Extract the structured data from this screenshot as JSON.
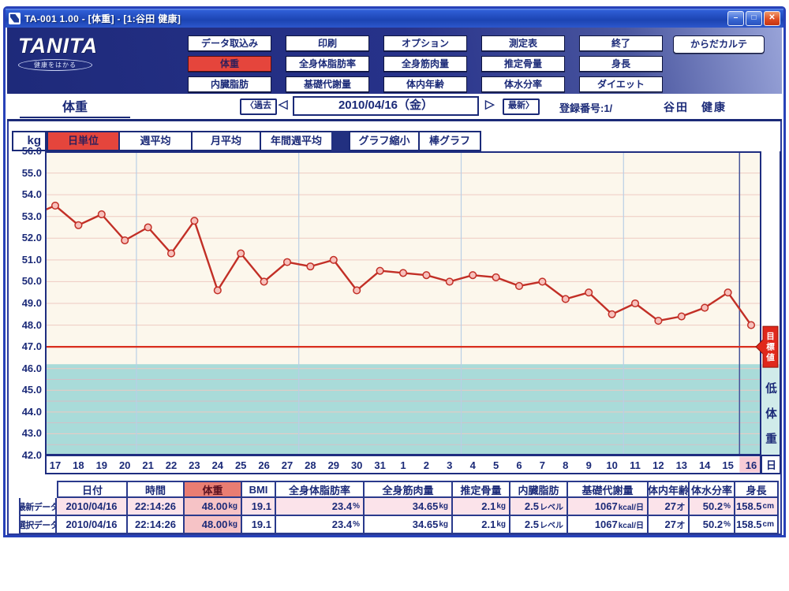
{
  "window": {
    "title": "TA-001 1.00 - [体重] - [1:谷田 健康]",
    "minimize_glyph": "–",
    "maximize_glyph": "□",
    "close_glyph": "✕"
  },
  "toolbar": {
    "brand": "TANITA",
    "tagline": "健康をはかる",
    "rows": [
      [
        "データ取込み",
        "印刷",
        "オプション",
        "測定表",
        "終了"
      ],
      [
        "体重",
        "全身体脂肪率",
        "全身筋肉量",
        "推定骨量",
        "身長"
      ],
      [
        "内臓脂肪",
        "基礎代謝量",
        "体内年齢",
        "体水分率",
        "ダイエット"
      ]
    ],
    "active_button": "体重",
    "karte_button": "からだカルテ"
  },
  "navbar": {
    "section": "体重",
    "past": "〈過去",
    "prev_glyph": "◁",
    "date": "2010/04/16（金）",
    "next_glyph": "▷",
    "latest": "最新〉",
    "registration": "登録番号:1/",
    "user": "谷田　健康"
  },
  "tabs": {
    "unit": "kg",
    "day": "日単位",
    "week": "週平均",
    "month": "月平均",
    "yearweek": "年間週平均",
    "active": "日単位",
    "shrink": "グラフ縮小",
    "bar": "棒グラフ"
  },
  "chart_data": {
    "type": "line",
    "title": "体重",
    "ylabel": "kg",
    "xlabel": "日",
    "ylim": [
      42.0,
      56.0
    ],
    "ytick_step": 1.0,
    "grid": true,
    "legend": false,
    "categories": [
      "17",
      "18",
      "19",
      "20",
      "21",
      "22",
      "23",
      "24",
      "25",
      "26",
      "27",
      "28",
      "29",
      "30",
      "31",
      "1",
      "2",
      "3",
      "4",
      "5",
      "6",
      "7",
      "8",
      "9",
      "10",
      "11",
      "12",
      "13",
      "14",
      "15",
      "16"
    ],
    "values": [
      53.5,
      52.6,
      53.1,
      51.9,
      52.5,
      51.3,
      52.8,
      49.6,
      51.3,
      50.0,
      50.9,
      50.7,
      51.0,
      49.6,
      50.5,
      50.4,
      50.3,
      50.0,
      50.3,
      50.2,
      49.8,
      50.0,
      49.2,
      49.5,
      48.5,
      49.0,
      48.2,
      48.4,
      48.8,
      49.5,
      48.0
    ],
    "edge_start_value": 53.3,
    "selected_category": "16",
    "selected_value": 48.0,
    "cursor_index": 29.5,
    "week_gridline_indices": [
      3.5,
      10.5,
      17.5,
      24.5
    ],
    "target_line": {
      "value": 47.0,
      "label": "目標値"
    },
    "underweight_band": {
      "from": 42.0,
      "to": 46.2,
      "label": "低体重"
    }
  },
  "table": {
    "columns": [
      "日付",
      "時間",
      "体重",
      "BMI",
      "全身体脂肪率",
      "全身筋肉量",
      "推定骨量",
      "内臓脂肪",
      "基礎代謝量",
      "体内年齢",
      "体水分率",
      "身長"
    ],
    "highlight_column": "体重",
    "rows": [
      {
        "label": "最新データ",
        "date": "2010/04/16",
        "time": "22:14:26",
        "weight": {
          "v": "48.00",
          "u": "kg"
        },
        "bmi": "19.1",
        "fat": {
          "v": "23.4",
          "u": "%"
        },
        "muscle": {
          "v": "34.65",
          "u": "kg"
        },
        "bone": {
          "v": "2.1",
          "u": "kg"
        },
        "visceral": {
          "v": "2.5",
          "u": "レベル"
        },
        "bmr": {
          "v": "1067",
          "u": "kcal/日"
        },
        "bodyage": {
          "v": "27",
          "u": "才"
        },
        "water": {
          "v": "50.2",
          "u": "%"
        },
        "height": {
          "v": "158.5",
          "u": "cm"
        }
      },
      {
        "label": "選択データ",
        "date": "2010/04/16",
        "time": "22:14:26",
        "weight": {
          "v": "48.00",
          "u": "kg"
        },
        "bmi": "19.1",
        "fat": {
          "v": "23.4",
          "u": "%"
        },
        "muscle": {
          "v": "34.65",
          "u": "kg"
        },
        "bone": {
          "v": "2.1",
          "u": "kg"
        },
        "visceral": {
          "v": "2.5",
          "u": "レベル"
        },
        "bmr": {
          "v": "1067",
          "u": "kcal/日"
        },
        "bodyage": {
          "v": "27",
          "u": "才"
        },
        "water": {
          "v": "50.2",
          "u": "%"
        },
        "height": {
          "v": "158.5",
          "u": "cm"
        }
      }
    ]
  },
  "colors": {
    "accent_red": "#e5453c",
    "navy": "#1b2a78",
    "line_red": "#c22f26",
    "marker_fill": "#f7c1bc",
    "target_red": "#d92f1f",
    "band_cyan": "#a9dbd9",
    "plot_cream": "#fcf7ec",
    "grid_pink": "#eecac2",
    "selected_pink": "#f7ccd6"
  }
}
